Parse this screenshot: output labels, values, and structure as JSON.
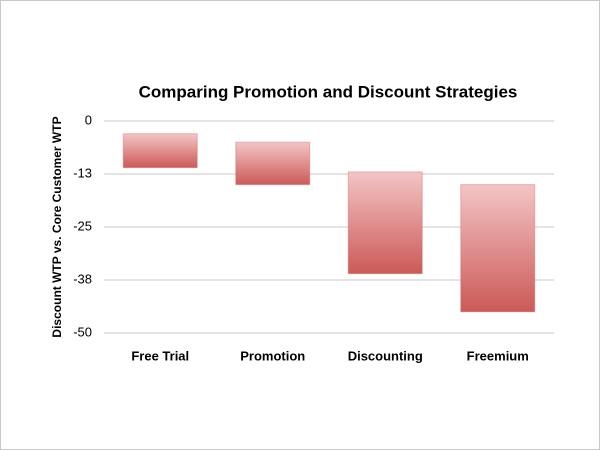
{
  "chart_data": {
    "type": "floating-bar",
    "title": "Comparing Promotion and Discount Strategies",
    "y_label": "Discount WTP vs. Core Customer WTP",
    "categories": [
      "Free Trial",
      "Promotion",
      "Discounting",
      "Freemium"
    ],
    "highs": [
      -3,
      -5,
      -12,
      -15
    ],
    "lows": [
      -11,
      -15,
      -36,
      -45
    ],
    "color": "#d05050",
    "ylim": [
      -50,
      0
    ],
    "yticks": [
      0,
      {
        "value": -12.5,
        "label": "-13"
      },
      -25,
      {
        "value": -37.5,
        "label": "-38"
      },
      -50
    ],
    "grid": true
  }
}
